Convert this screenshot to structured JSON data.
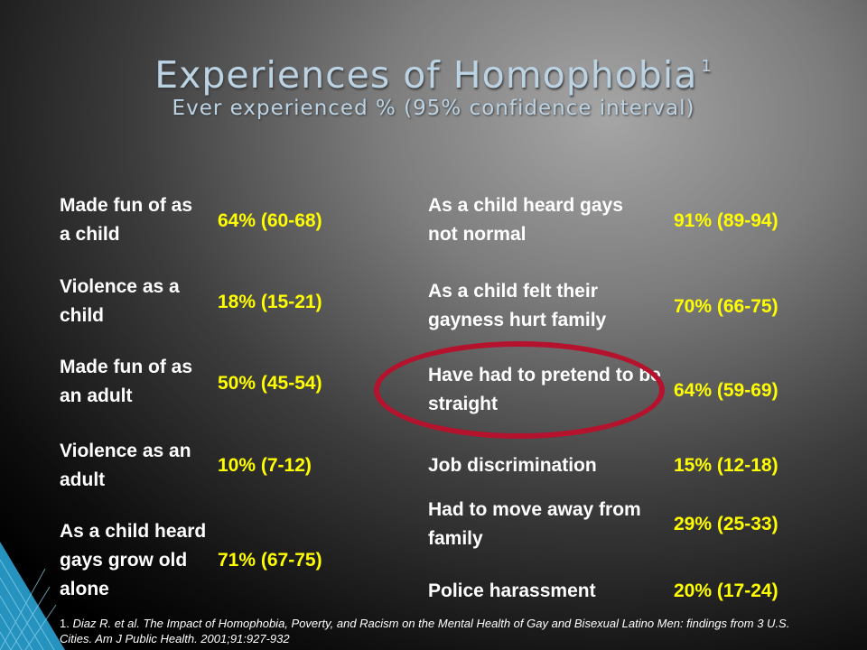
{
  "slide": {
    "title": "Experiences of Homophobia",
    "title_superscript": "1",
    "subtitle": "Ever experienced % (95% confidence interval)"
  },
  "left_rows": [
    {
      "label": "Made fun of as a child",
      "value": "64% (60-68)"
    },
    {
      "label": "Violence as a child",
      "value": "18% (15-21)"
    },
    {
      "label": "Made fun of as an adult",
      "value": "50% (45-54)"
    },
    {
      "label": "Violence as an adult",
      "value": "10% (7-12)"
    },
    {
      "label": "As a child heard gays grow old alone",
      "value": "71% (67-75)"
    }
  ],
  "right_rows": [
    {
      "label": "As a child heard gays not normal",
      "value": "91% (89-94)"
    },
    {
      "label": "As a child felt their gayness hurt family",
      "value": "70% (66-75)"
    },
    {
      "label": "Have had to pretend to be straight",
      "value": "64% (59-69)"
    },
    {
      "label": "Job discrimination",
      "value": "15% (12-18)"
    },
    {
      "label": "Had to move away from family",
      "value": "29% (25-33)"
    },
    {
      "label": "Police harassment",
      "value": "20% (17-24)"
    }
  ],
  "footnote": {
    "number": "1.",
    "text": "Diaz R. et al. The Impact of Homophobia, Poverty, and Racism on the Mental Health of Gay and Bisexual Latino Men: findings from 3 U.S. Cities. Am J Public Health. 2001;91:927-932"
  },
  "colors": {
    "title": "#bcd3e4",
    "label_text": "#ffffff",
    "value_text": "#ffff00",
    "highlight_circle": "#b5122e"
  }
}
